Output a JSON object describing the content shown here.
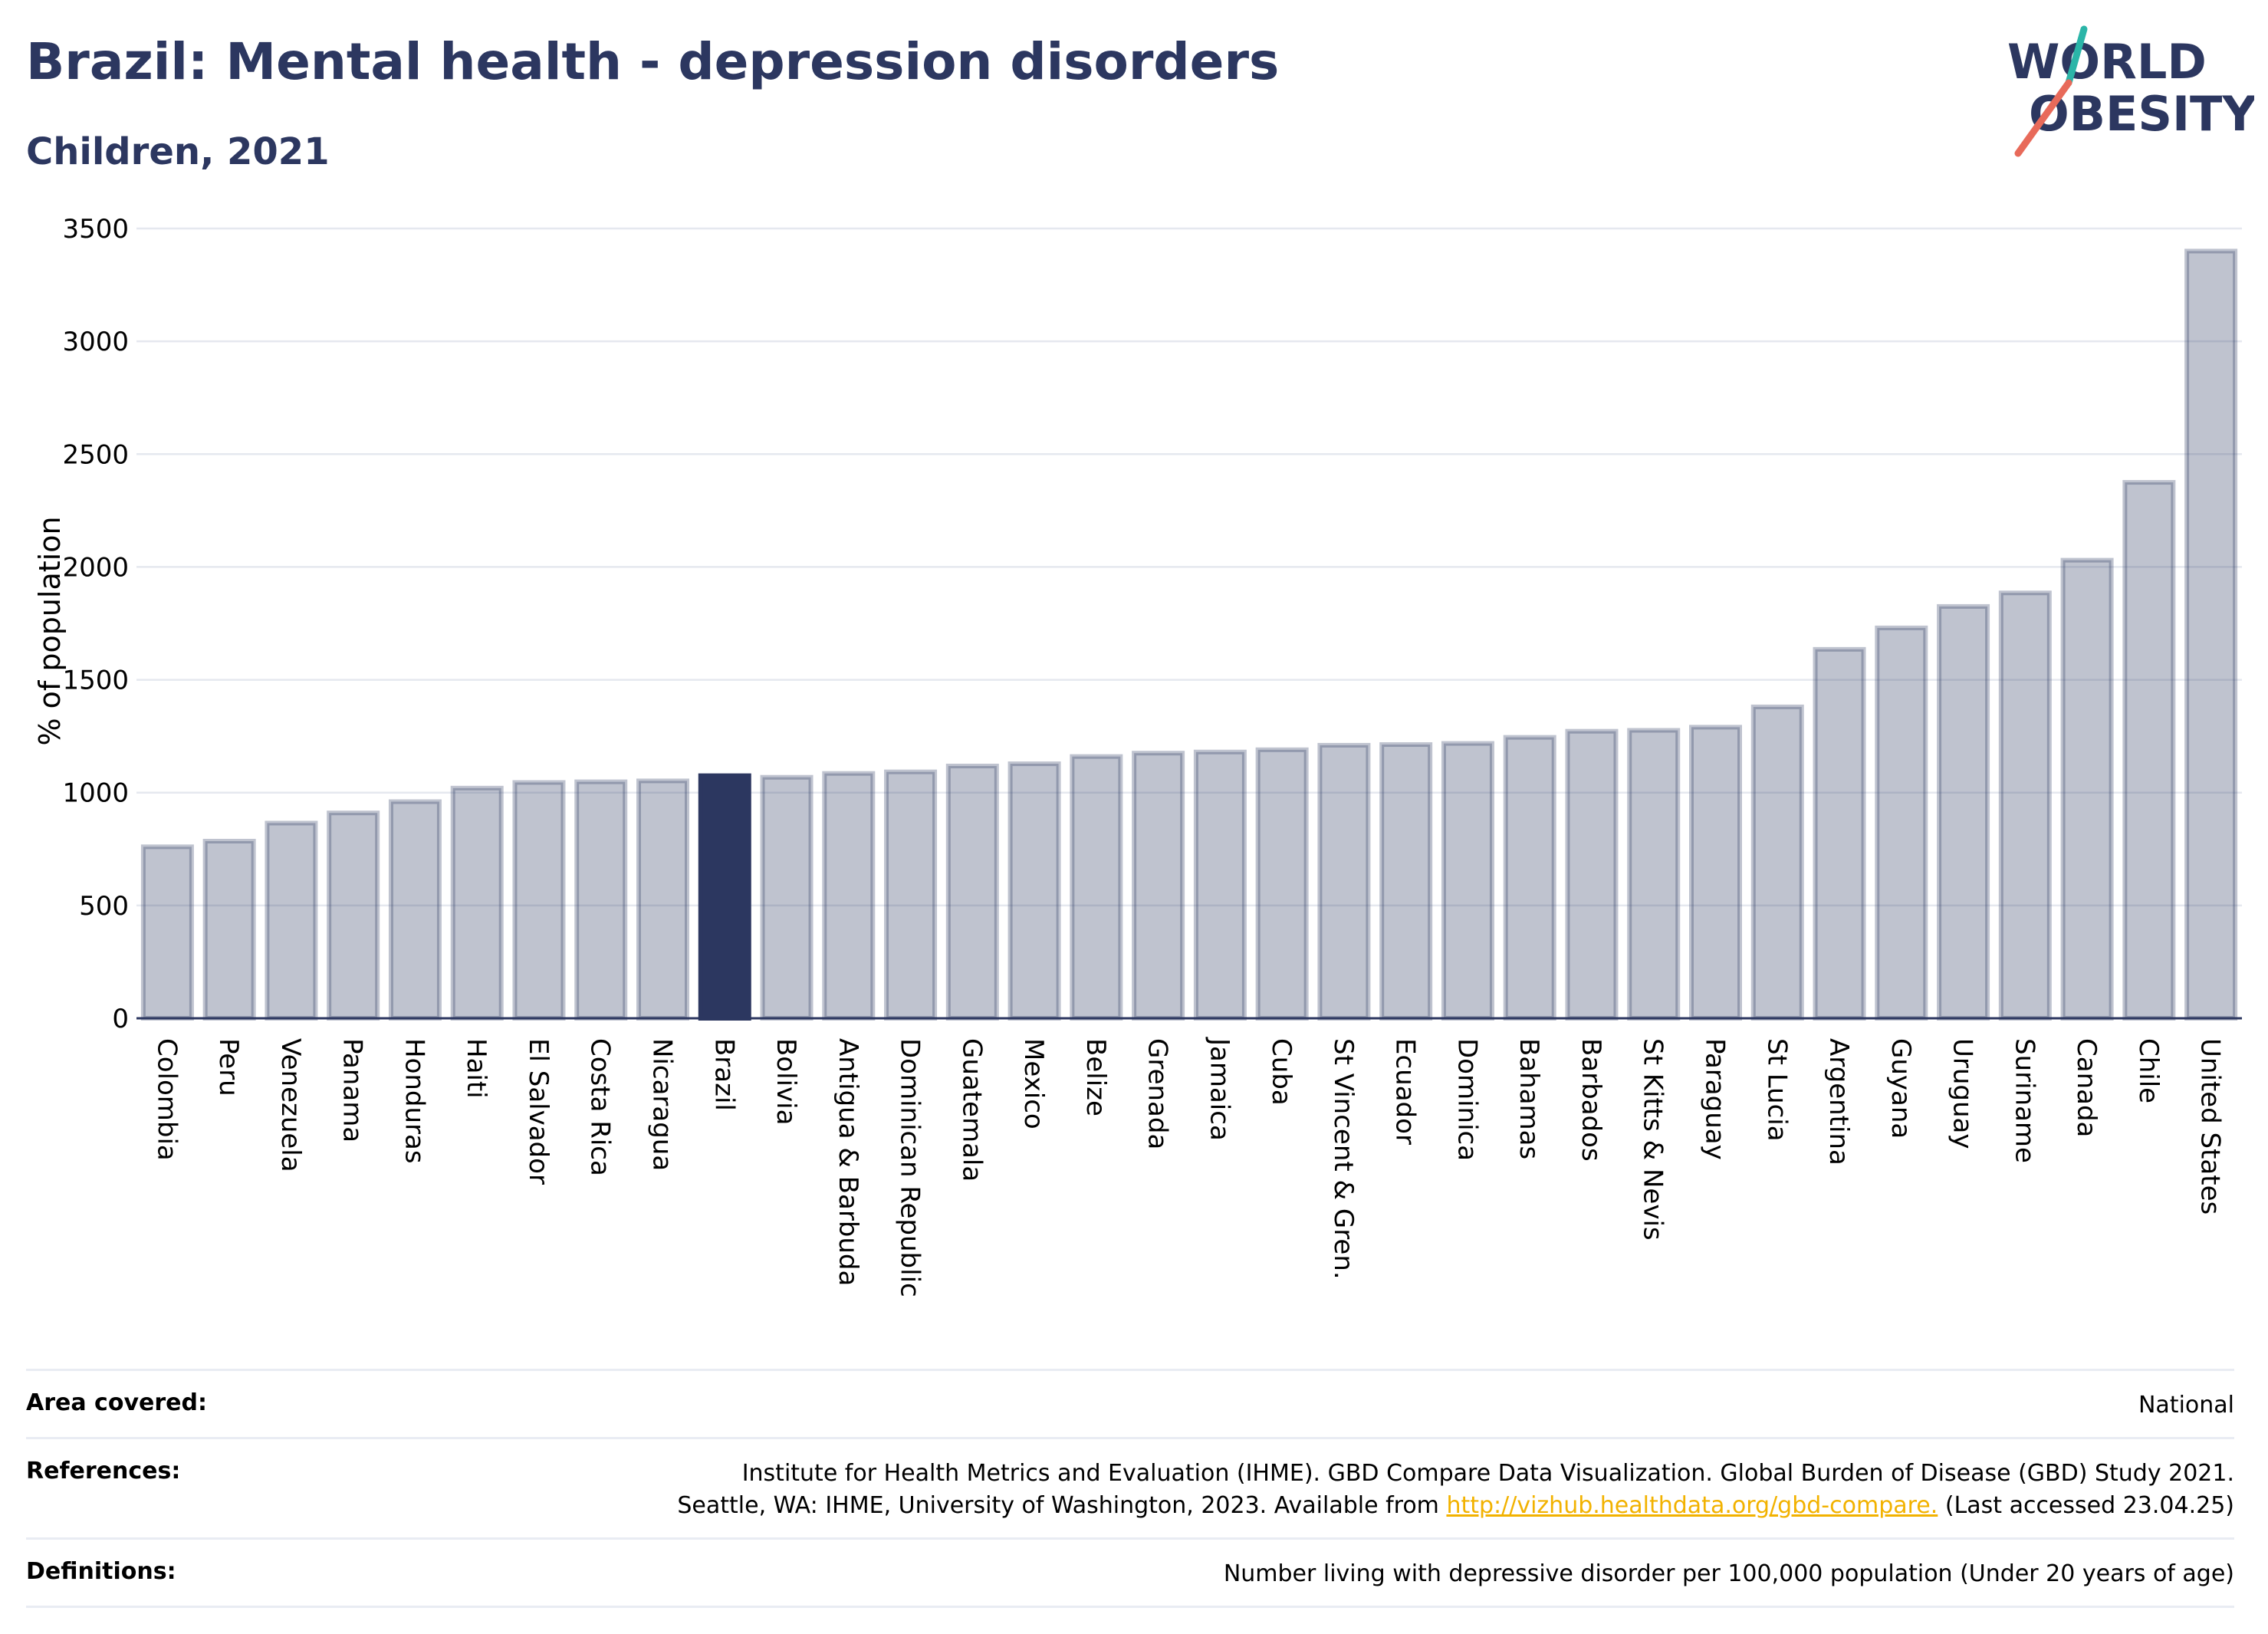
{
  "header": {
    "title": "Brazil: Mental health - depression disorders",
    "subtitle": "Children, 2021"
  },
  "logo": {
    "line1": "WORLD",
    "line2": "OBESITY"
  },
  "chart_data": {
    "type": "bar",
    "ylabel": "% of population",
    "ylim": [
      0,
      3500
    ],
    "yticks": [
      0,
      500,
      1000,
      1500,
      2000,
      2500,
      3000,
      3500
    ],
    "grid": true,
    "highlight": "Brazil",
    "colors": {
      "bar": "#2c3760",
      "highlight": "#2c3760",
      "grid": "#e5e8ef"
    },
    "categories": [
      "Colombia",
      "Peru",
      "Venezuela",
      "Panama",
      "Honduras",
      "Haiti",
      "El Salvador",
      "Costa Rica",
      "Nicaragua",
      "Brazil",
      "Bolivia",
      "Antigua & Barbuda",
      "Dominican Republic",
      "Guatemala",
      "Mexico",
      "Belize",
      "Grenada",
      "Jamaica",
      "Cuba",
      "St Vincent & Gren.",
      "Ecuador",
      "Dominica",
      "Bahamas",
      "Barbados",
      "St Kitts & Nevis",
      "Paraguay",
      "St Lucia",
      "Argentina",
      "Guyana",
      "Uruguay",
      "Suriname",
      "Canada",
      "Chile",
      "United States"
    ],
    "values": [
      760,
      785,
      865,
      910,
      960,
      1020,
      1045,
      1048,
      1052,
      1075,
      1068,
      1085,
      1092,
      1118,
      1128,
      1160,
      1175,
      1180,
      1190,
      1210,
      1213,
      1218,
      1245,
      1272,
      1276,
      1290,
      1380,
      1635,
      1730,
      1825,
      1885,
      2030,
      2375,
      3400
    ]
  },
  "footer": {
    "area": {
      "label": "Area covered:",
      "value": "National"
    },
    "references": {
      "label": "References:",
      "line1": "Institute for Health Metrics and Evaluation (IHME). GBD Compare Data Visualization. Global Burden of Disease (GBD) Study 2021.",
      "line2_pre": "Seattle, WA: IHME, University of Washington, 2023. Available from ",
      "link": "http://vizhub.healthdata.org/gbd-compare.",
      "line2_post": " (Last accessed 23.04.25)"
    },
    "definitions": {
      "label": "Definitions:",
      "value": "Number living with depressive disorder per 100,000 population (Under 20 years of age)"
    }
  }
}
